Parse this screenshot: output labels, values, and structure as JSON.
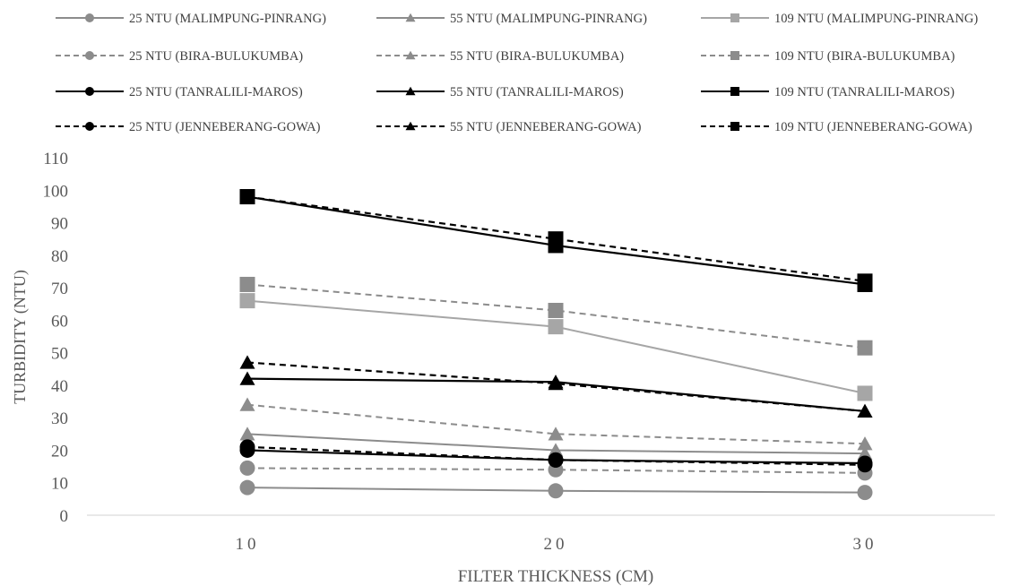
{
  "chart_data": {
    "type": "line",
    "title": "",
    "xlabel": "FILTER THICKNESS (CM)",
    "ylabel": "TURBIDITY (NTU)",
    "categories": [
      "10",
      "20",
      "30"
    ],
    "x": [
      10,
      20,
      30
    ],
    "ylim": [
      0,
      110
    ],
    "yticks": [
      0,
      10,
      20,
      30,
      40,
      50,
      60,
      70,
      80,
      90,
      100,
      110
    ],
    "grid": false,
    "legend_position": "top",
    "series": [
      {
        "name": "25 NTU (MALIMPUNG-PINRANG)",
        "values": [
          8.5,
          7.5,
          7
        ],
        "color": "#8c8c8c",
        "dash": "solid",
        "marker": "circle"
      },
      {
        "name": "55 NTU (MALIMPUNG-PINRANG)",
        "values": [
          25,
          20,
          19
        ],
        "color": "#8c8c8c",
        "dash": "solid",
        "marker": "triangle"
      },
      {
        "name": "109 NTU (MALIMPUNG-PINRANG)",
        "values": [
          66,
          58,
          37.5
        ],
        "color": "#a6a6a6",
        "dash": "solid",
        "marker": "square"
      },
      {
        "name": "25 NTU (BIRA-BULUKUMBA)",
        "values": [
          14.5,
          14,
          13
        ],
        "color": "#8c8c8c",
        "dash": "dashed",
        "marker": "circle"
      },
      {
        "name": "55 NTU (BIRA-BULUKUMBA)",
        "values": [
          34,
          25,
          22
        ],
        "color": "#8c8c8c",
        "dash": "dashed",
        "marker": "triangle"
      },
      {
        "name": "109 NTU (BIRA-BULUKUMBA)",
        "values": [
          71,
          63,
          51.5
        ],
        "color": "#8c8c8c",
        "dash": "dashed",
        "marker": "square"
      },
      {
        "name": "25 NTU (TANRALILI-MAROS)",
        "values": [
          20,
          17,
          16
        ],
        "color": "#000000",
        "dash": "solid",
        "marker": "circle"
      },
      {
        "name": "55 NTU (TANRALILI-MAROS)",
        "values": [
          42,
          41,
          32
        ],
        "color": "#000000",
        "dash": "solid",
        "marker": "triangle"
      },
      {
        "name": "109 NTU (TANRALILI-MAROS)",
        "values": [
          98,
          83,
          71
        ],
        "color": "#000000",
        "dash": "solid",
        "marker": "square"
      },
      {
        "name": "25 NTU (JENNEBERANG-GOWA)",
        "values": [
          21,
          17,
          15.5
        ],
        "color": "#000000",
        "dash": "dashed",
        "marker": "circle"
      },
      {
        "name": "55 NTU (JENNEBERANG-GOWA)",
        "values": [
          47,
          40.5,
          32
        ],
        "color": "#000000",
        "dash": "dashed",
        "marker": "triangle"
      },
      {
        "name": "109 NTU (JENNEBERANG-GOWA)",
        "values": [
          98,
          85,
          72
        ],
        "color": "#000000",
        "dash": "dashed",
        "marker": "square"
      }
    ]
  }
}
